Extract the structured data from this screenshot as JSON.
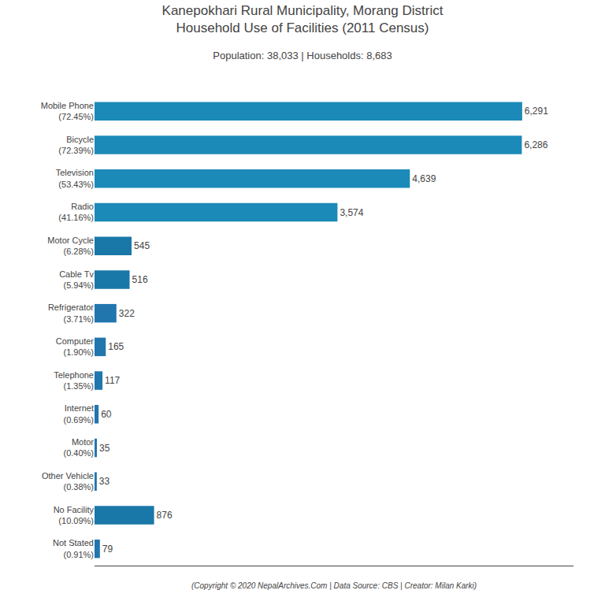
{
  "chart_data": {
    "type": "bar",
    "orientation": "horizontal",
    "title": "Kanepokhari Rural Municipality, Morang District\nHousehold Use of Facilities (2011 Census)",
    "subtitle": "Population: 38,033 | Households: 8,683",
    "annotations": [
      "(Copyright © 2020 NepalArchives.Com | Data Source: CBS | Creator: Milan Karki)"
    ],
    "categories": [
      "Mobile Phone\n(72.45%)",
      "Bicycle\n(72.39%)",
      "Television\n(53.43%)",
      "Radio\n(41.16%)",
      "Motor Cycle\n(6.28%)",
      "Cable Tv\n(5.94%)",
      "Refrigerator\n(3.71%)",
      "Computer\n(1.90%)",
      "Telephone\n(1.35%)",
      "Internet\n(0.69%)",
      "Motor\n(0.40%)",
      "Other Vehicle\n(0.38%)",
      "No Facility\n(10.09%)",
      "Not Stated\n(0.91%)"
    ],
    "values": [
      6291,
      6286,
      4639,
      3574,
      545,
      516,
      322,
      165,
      117,
      60,
      35,
      33,
      876,
      79
    ],
    "value_labels": [
      "6,291",
      "6,286",
      "4,639",
      "3,574",
      "545",
      "516",
      "322",
      "165",
      "117",
      "60",
      "35",
      "33",
      "876",
      "79"
    ],
    "data_labels": true,
    "colors": [
      "#1b8ab8",
      "#1b8ab8",
      "#1b8ab8",
      "#1b8ab8",
      "#1a78a8",
      "#1a78a8",
      "#2176ae",
      "#2176ae",
      "#2176ae",
      "#2176ae",
      "#2176ae",
      "#2176ae",
      "#1a78a8",
      "#2176ae"
    ],
    "xlim": [
      0,
      7045.92
    ],
    "tick_labels": "y",
    "grid": false
  }
}
